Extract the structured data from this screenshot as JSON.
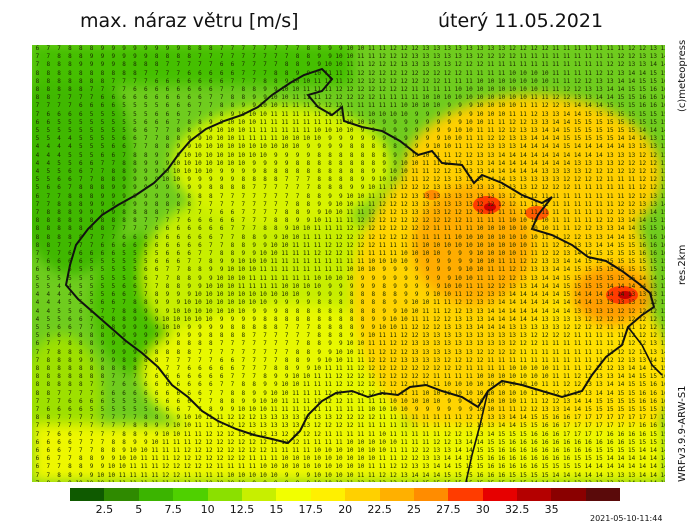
{
  "header": {
    "title": "max. náraz větru [m/s]",
    "date": "úterý 11.05.2021"
  },
  "side_labels": {
    "copyright": "(c)meteopress",
    "resolution": "res.2km",
    "model": "WRFv3.9.9-ARW-S1"
  },
  "legend": {
    "colors": [
      "#0f5a00",
      "#2f8a00",
      "#3bb400",
      "#4fd000",
      "#8be000",
      "#c7ef00",
      "#f2ff00",
      "#fff000",
      "#ffd000",
      "#ffb000",
      "#ff8c00",
      "#ff3c00",
      "#e60000",
      "#b40000",
      "#8a0000",
      "#5a0a0a"
    ],
    "labels": [
      "2.5",
      "5",
      "7.5",
      "10",
      "12.5",
      "15",
      "17.5",
      "20",
      "22.5",
      "25",
      "27.5",
      "30",
      "32.5",
      "35"
    ]
  },
  "timestamp": "2021-05-10-11:44"
}
